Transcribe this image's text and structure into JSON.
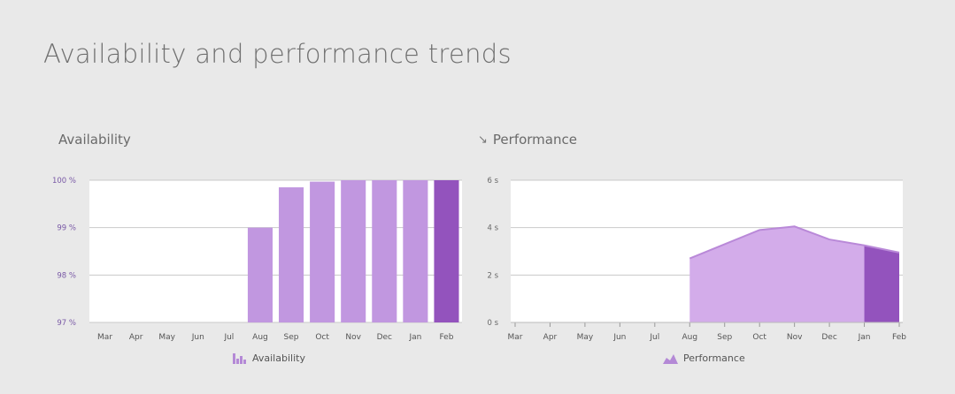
{
  "page": {
    "title": "Availability and performance trends"
  },
  "availability": {
    "title": "Availability",
    "legend": "Availability",
    "unit_suffix": " %",
    "colors": {
      "bar": "#c197e0",
      "highlight": "#9353bd",
      "tick": "#7a5aa6"
    }
  },
  "performance": {
    "title": "Performance",
    "legend": "Performance",
    "unit_suffix": " s",
    "colors": {
      "area": "#d3acea",
      "line": "#b989d8",
      "highlight": "#9353bd",
      "tick": "#666"
    }
  },
  "chart_data": [
    {
      "type": "bar",
      "title": "Availability",
      "categories": [
        "Mar",
        "Apr",
        "May",
        "Jun",
        "Jul",
        "Aug",
        "Sep",
        "Oct",
        "Nov",
        "Dec",
        "Jan",
        "Feb"
      ],
      "values": [
        null,
        null,
        null,
        null,
        null,
        99.0,
        99.85,
        99.97,
        100,
        100,
        100,
        100
      ],
      "ylim": [
        97,
        100
      ],
      "yticks": [
        97,
        98,
        99,
        100
      ],
      "ytick_labels": [
        "97 %",
        "98 %",
        "99 %",
        "100 %"
      ],
      "highlight_index": 11,
      "legend": "Availability",
      "grid": true
    },
    {
      "type": "area",
      "title": "Performance",
      "categories": [
        "Mar",
        "Apr",
        "May",
        "Jun",
        "Jul",
        "Aug",
        "Sep",
        "Oct",
        "Nov",
        "Dec",
        "Jan",
        "Feb"
      ],
      "values": [
        null,
        null,
        null,
        null,
        null,
        2.7,
        3.3,
        3.9,
        4.05,
        3.5,
        3.25,
        2.95
      ],
      "ylim": [
        0,
        6
      ],
      "yticks": [
        0,
        2,
        4,
        6
      ],
      "ytick_labels": [
        "0 s",
        "2 s",
        "4 s",
        "6 s"
      ],
      "highlight_from_index": 10,
      "legend": "Performance",
      "grid": true
    }
  ]
}
